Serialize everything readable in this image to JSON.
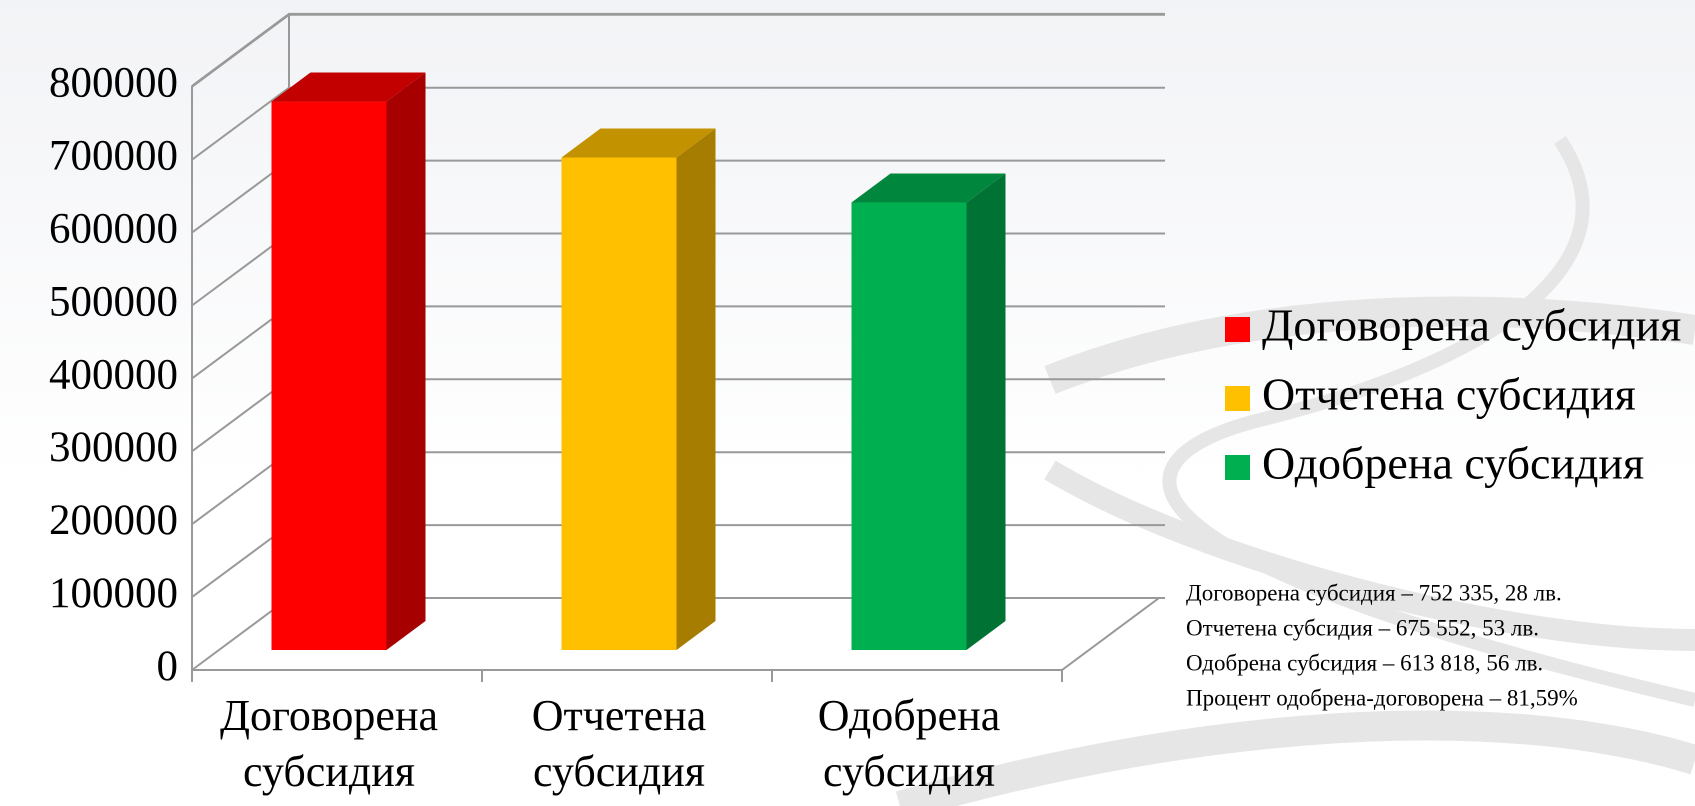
{
  "chart_data": {
    "type": "bar3d",
    "categories": [
      "Договорена субсидия",
      "Отчетена субсидия",
      "Одобрена субсидия"
    ],
    "values": [
      752335.28,
      675552.53,
      613818.56
    ],
    "colors": [
      "#ff0000",
      "#ffc000",
      "#00b050"
    ],
    "ylim": [
      0,
      900000
    ],
    "yticks": [
      0,
      100000,
      200000,
      300000,
      400000,
      500000,
      600000,
      700000,
      800000
    ],
    "grid": true,
    "legend": "right",
    "annotations": [
      "Договорена субсидия – 752 335, 28 лв.",
      "Отчетена субсидия – 675 552, 53 лв.",
      "Одобрена субсидия – 613 818, 56 лв.",
      "Процент одобрена-договорена – 81,59%"
    ]
  }
}
